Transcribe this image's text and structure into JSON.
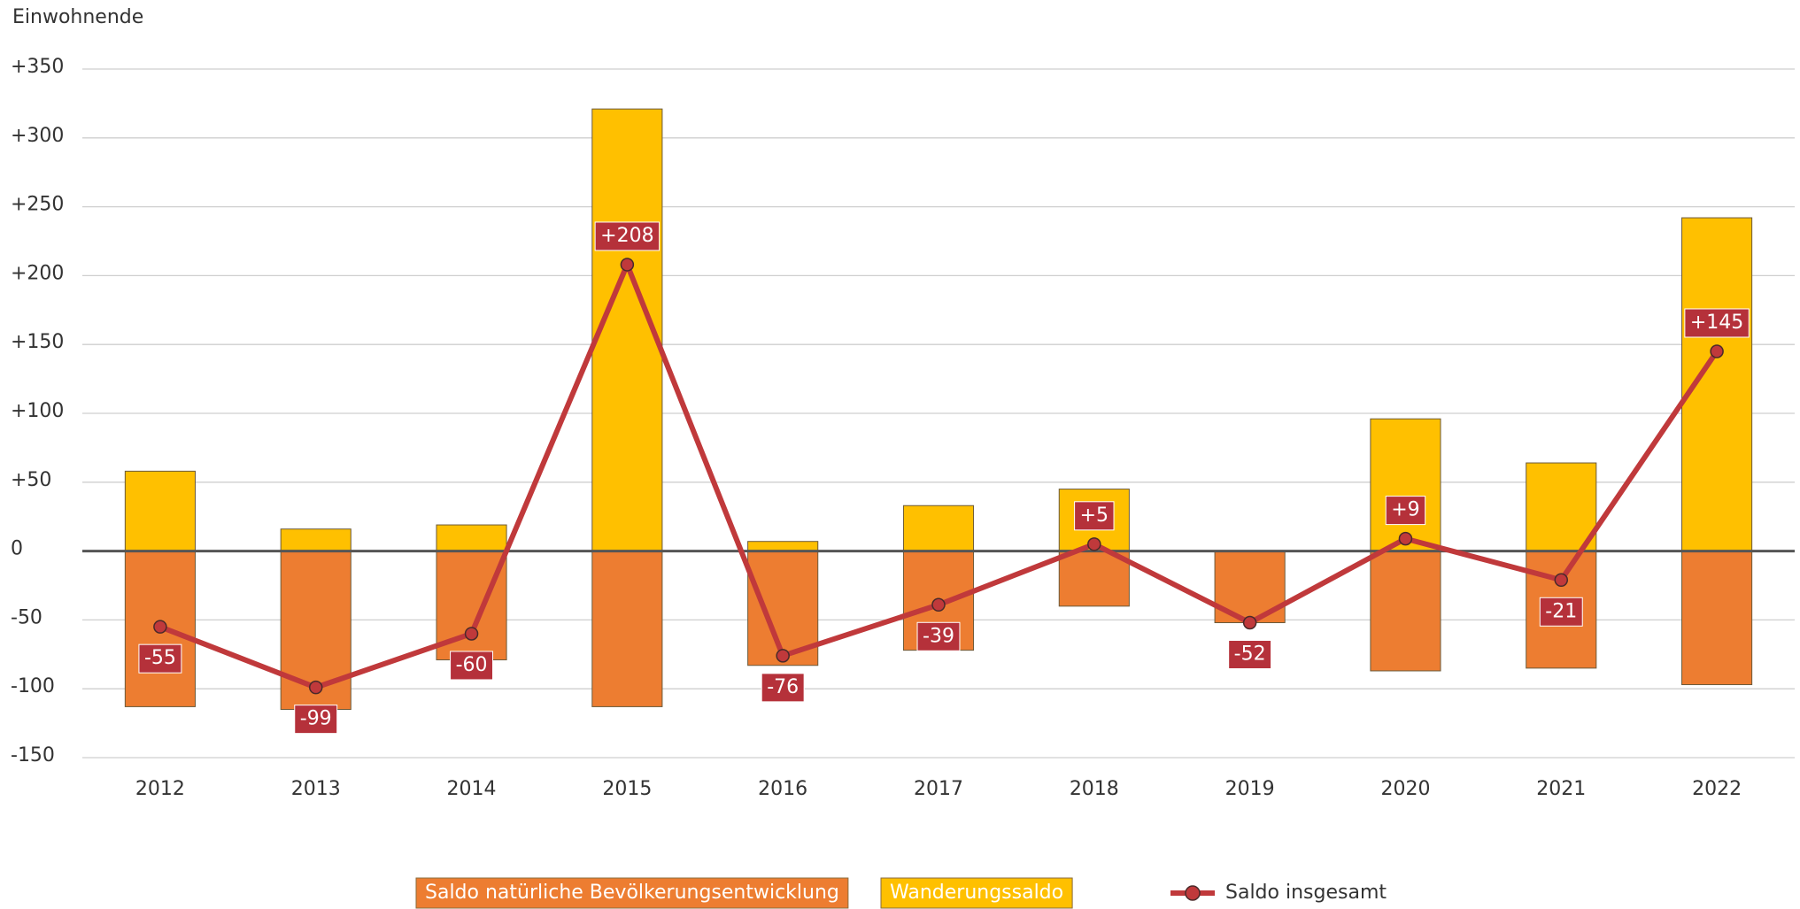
{
  "chart_data": {
    "type": "bar",
    "y_label": "Einwohnende",
    "categories": [
      "2012",
      "2013",
      "2014",
      "2015",
      "2016",
      "2017",
      "2018",
      "2019",
      "2020",
      "2021",
      "2022"
    ],
    "series": [
      {
        "name": "Saldo natürliche Bevölkerungsentwicklung",
        "type": "bar",
        "color": "#ed7d31",
        "values": [
          -113,
          -115,
          -79,
          -113,
          -83,
          -72,
          -40,
          -52,
          -87,
          -85,
          -97
        ]
      },
      {
        "name": "Wanderungssaldo",
        "type": "bar",
        "color": "#ffc000",
        "values": [
          58,
          16,
          19,
          321,
          7,
          33,
          45,
          0,
          96,
          64,
          242
        ]
      },
      {
        "name": "Saldo insgesamt",
        "type": "line",
        "color": "#c0393b",
        "values": [
          -55,
          -99,
          -60,
          208,
          -76,
          -39,
          5,
          -52,
          9,
          -21,
          145
        ],
        "value_labels": [
          "-55",
          "-99",
          "-60",
          "+208",
          "-76",
          "-39",
          "+5",
          "-52",
          "+9",
          "-21",
          "+145"
        ]
      }
    ],
    "ylim": [
      -150,
      350
    ],
    "yticks": [
      {
        "value": -150,
        "label": "-150"
      },
      -100,
      -50,
      0,
      {
        "value": 50,
        "label": "+50"
      },
      {
        "value": 100,
        "label": "+100"
      },
      {
        "value": 150,
        "label": "+150"
      },
      {
        "value": 200,
        "label": "+200"
      },
      {
        "value": 250,
        "label": "+250"
      },
      {
        "value": 300,
        "label": "+300"
      },
      {
        "value": 350,
        "label": "+350"
      }
    ],
    "grid": true
  }
}
